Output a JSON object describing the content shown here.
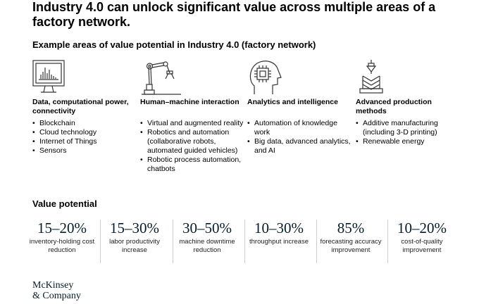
{
  "title": "Industry 4.0 can unlock significant value across multiple areas of a factory network.",
  "subtitle": "Example areas of value potential in Industry 4.0 (factory network)",
  "areas": [
    {
      "icon": "computer-monitor-icon",
      "title": "Data, computational power, connectivity",
      "items": [
        "Blockchain",
        "Cloud technology",
        "Internet of Things",
        "Sensors"
      ]
    },
    {
      "icon": "robot-arm-icon",
      "title": "Human–machine interaction",
      "items": [
        "Virtual and augmented reality",
        "Robotics and automation (collaborative robots, automated guided vehicles)",
        "Robotic process automation, chatbots"
      ]
    },
    {
      "icon": "head-chip-icon",
      "title": "Analytics and intelligence",
      "items": [
        "Automation of knowledge work",
        "Big data, advanced analytics, and AI"
      ]
    },
    {
      "icon": "3d-printer-icon",
      "title": "Advanced production methods",
      "items": [
        "Additive manufacturing (including 3-D printing)",
        "Renewable energy"
      ]
    }
  ],
  "value_heading": "Value potential",
  "metrics": [
    {
      "value": "15–20%",
      "label": "inventory-holding cost reduction"
    },
    {
      "value": "15–30%",
      "label": "labor productivity increase"
    },
    {
      "value": "30–50%",
      "label": "machine downtime reduction"
    },
    {
      "value": "10–30%",
      "label": "throughput increase"
    },
    {
      "value": "85%",
      "label": "forecasting accuracy improvement"
    },
    {
      "value": "10–20%",
      "label": "cost-of-quality improvement"
    }
  ],
  "logo": {
    "line1": "McKinsey",
    "line2": "& Company"
  },
  "colors": {
    "text": "#000000",
    "accent": "#051c2c",
    "separator": "#cfcfcf"
  }
}
